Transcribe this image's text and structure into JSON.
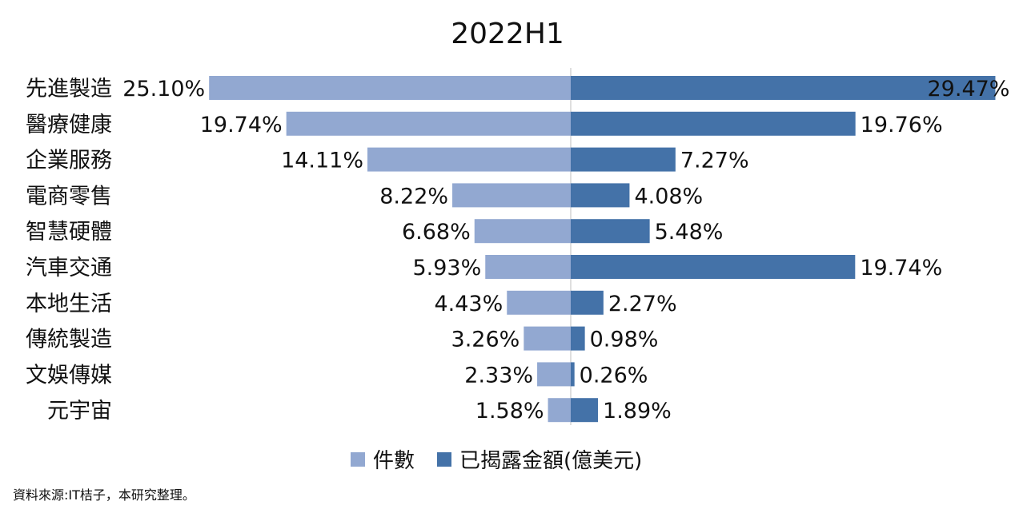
{
  "chart_data": {
    "type": "bar",
    "title": "2022H1",
    "categories": [
      "先進製造",
      "醫療健康",
      "企業服務",
      "電商零售",
      "智慧硬體",
      "汽車交通",
      "本地生活",
      "傳統製造",
      "文娛傳媒",
      "元宇宙"
    ],
    "series": [
      {
        "name": "件數",
        "values": [
          25.1,
          19.74,
          14.11,
          8.22,
          6.68,
          5.93,
          4.43,
          3.26,
          2.33,
          1.58
        ],
        "labels": [
          "25.10%",
          "19.74%",
          "14.11%",
          "8.22%",
          "6.68%",
          "5.93%",
          "4.43%",
          "3.26%",
          "2.33%",
          "1.58%"
        ],
        "color": "#92a8d1"
      },
      {
        "name": "已揭露金額(億美元)",
        "values": [
          29.47,
          19.76,
          7.27,
          4.08,
          5.48,
          19.74,
          2.27,
          0.98,
          0.26,
          1.89
        ],
        "labels": [
          "29.47%",
          "19.76%",
          "7.27%",
          "4.08%",
          "5.48%",
          "19.74%",
          "2.27%",
          "0.98%",
          "0.26%",
          "1.89%"
        ],
        "color": "#4472a8"
      }
    ],
    "orientation": "horizontal-diverging",
    "legend": "bottom"
  },
  "legend": {
    "item1": "件數",
    "item2": "已揭露金額(億美元)"
  },
  "source_note": "資料來源:IT桔子，本研究整理。"
}
